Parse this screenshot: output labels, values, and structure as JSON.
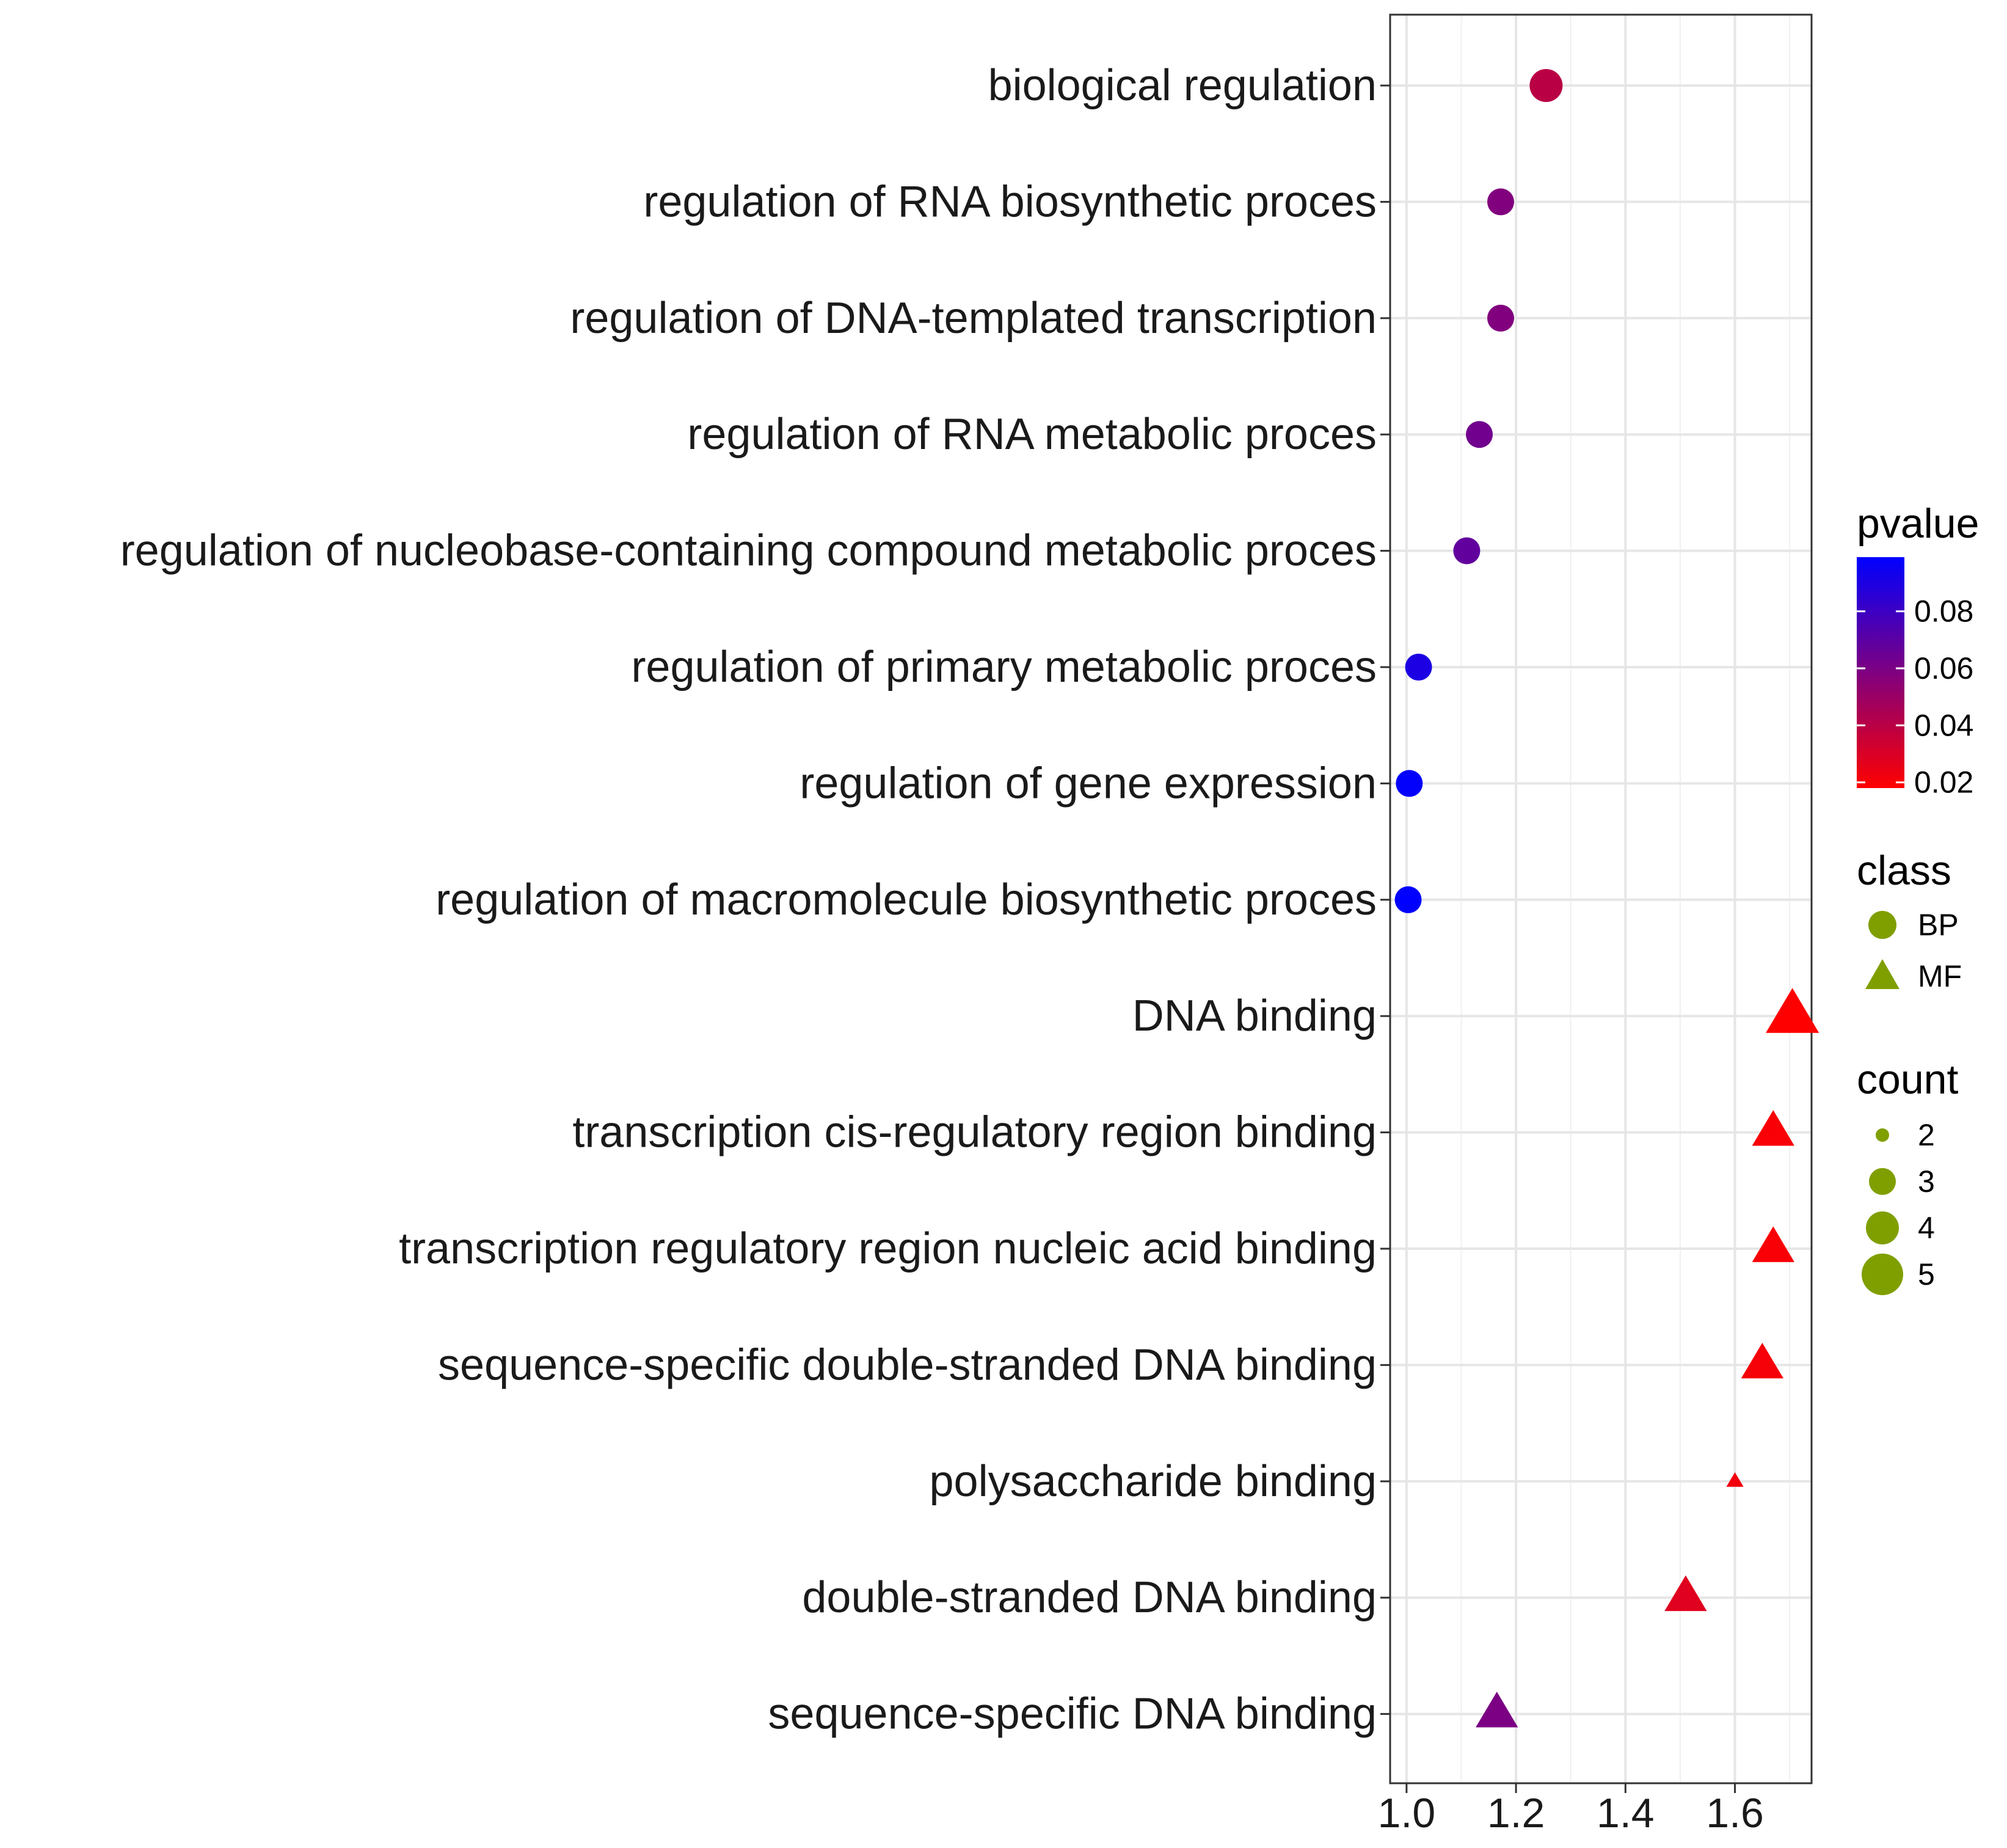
{
  "chart_data": {
    "type": "scatter",
    "title": "",
    "xlabel": "",
    "ylabel": "",
    "xlim": [
      0.97,
      1.74
    ],
    "x_ticks": [
      1.0,
      1.2,
      1.4,
      1.6
    ],
    "x_tick_labels": [
      "1.0",
      "1.2",
      "1.4",
      "1.6"
    ],
    "grid": true,
    "legend_position": "right",
    "points": [
      {
        "term": "biological regulation",
        "x": 1.255,
        "pvalue": 0.04,
        "class": "BP",
        "count": 4
      },
      {
        "term": "regulation of RNA biosynthetic proces",
        "x": 1.172,
        "pvalue": 0.058,
        "class": "BP",
        "count": 3
      },
      {
        "term": "regulation of DNA-templated transcription",
        "x": 1.172,
        "pvalue": 0.058,
        "class": "BP",
        "count": 3
      },
      {
        "term": "regulation of RNA metabolic proces",
        "x": 1.133,
        "pvalue": 0.063,
        "class": "BP",
        "count": 3
      },
      {
        "term": "regulation of nucleobase-containing compound metabolic proces",
        "x": 1.11,
        "pvalue": 0.068,
        "class": "BP",
        "count": 3
      },
      {
        "term": "regulation of primary metabolic proces",
        "x": 1.022,
        "pvalue": 0.09,
        "class": "BP",
        "count": 3
      },
      {
        "term": "regulation of gene expression",
        "x": 1.005,
        "pvalue": 0.098,
        "class": "BP",
        "count": 3
      },
      {
        "term": "regulation of macromolecule biosynthetic proces",
        "x": 1.003,
        "pvalue": 0.099,
        "class": "BP",
        "count": 3
      },
      {
        "term": "DNA binding",
        "x": 1.705,
        "pvalue": 0.018,
        "class": "MF",
        "count": 5
      },
      {
        "term": "transcription cis-regulatory region binding",
        "x": 1.67,
        "pvalue": 0.02,
        "class": "MF",
        "count": 4
      },
      {
        "term": "transcription regulatory region nucleic acid binding",
        "x": 1.67,
        "pvalue": 0.02,
        "class": "MF",
        "count": 4
      },
      {
        "term": "sequence-specific double-stranded DNA binding",
        "x": 1.65,
        "pvalue": 0.021,
        "class": "MF",
        "count": 4
      },
      {
        "term": "polysaccharide binding",
        "x": 1.6,
        "pvalue": 0.022,
        "class": "MF",
        "count": 2
      },
      {
        "term": "double-stranded DNA binding",
        "x": 1.51,
        "pvalue": 0.028,
        "class": "MF",
        "count": 4
      },
      {
        "term": "sequence-specific DNA binding",
        "x": 1.165,
        "pvalue": 0.06,
        "class": "MF",
        "count": 4
      }
    ],
    "legends": {
      "pvalue": {
        "title": "pvalue",
        "range": [
          0.018,
          0.099
        ],
        "ticks": [
          0.08,
          0.06,
          0.04,
          0.02
        ],
        "tick_labels": [
          "0.08",
          "0.06",
          "0.04",
          "0.02"
        ],
        "low_color": "#ff0000",
        "high_color": "#0000ff"
      },
      "class": {
        "title": "class",
        "items": [
          {
            "label": "BP",
            "shape": "circle"
          },
          {
            "label": "MF",
            "shape": "triangle"
          }
        ],
        "color": "#7f9f00"
      },
      "count": {
        "title": "count",
        "items": [
          {
            "label": "2",
            "value": 2
          },
          {
            "label": "3",
            "value": 3
          },
          {
            "label": "4",
            "value": 4
          },
          {
            "label": "5",
            "value": 5
          }
        ],
        "color": "#7f9f00"
      }
    }
  }
}
